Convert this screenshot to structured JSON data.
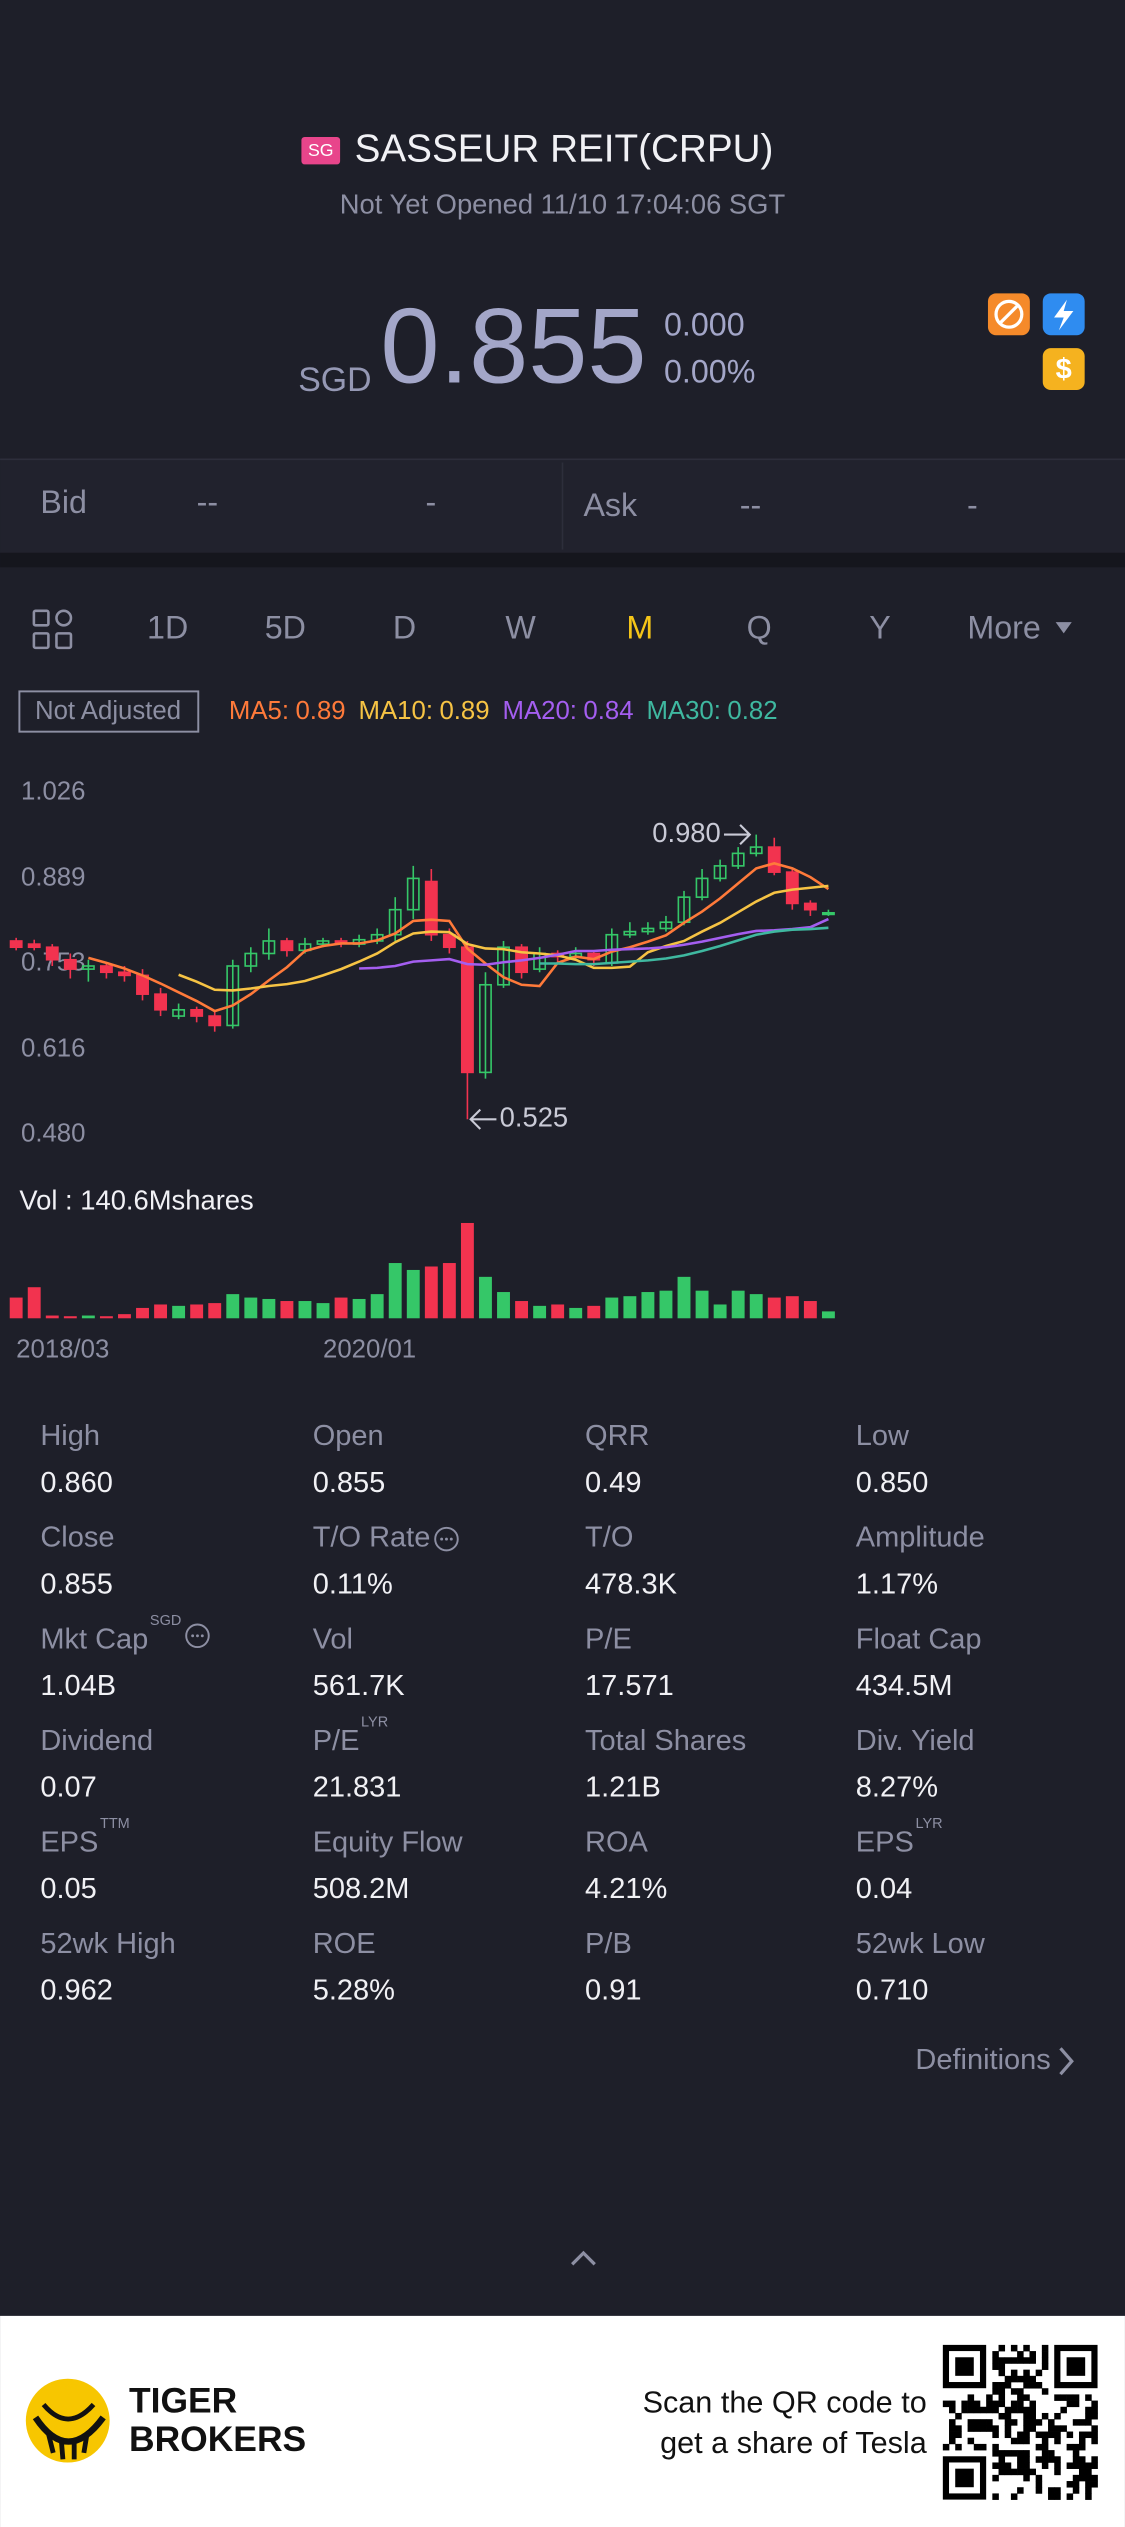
{
  "header": {
    "exchange": "SG",
    "title": "SASSEUR REIT(CRPU)",
    "status": "Not Yet Opened 11/10 17:04:06 SGT",
    "currency": "SGD",
    "price": "0.855",
    "change": "0.000",
    "change_pct": "0.00%"
  },
  "quote": {
    "bid_label": "Bid",
    "bid_price": "--",
    "bid_size": "-",
    "ask_label": "Ask",
    "ask_price": "--",
    "ask_size": "-"
  },
  "tabs": [
    "1D",
    "5D",
    "D",
    "W",
    "M",
    "Q",
    "Y",
    "More"
  ],
  "active_tab": 4,
  "adjust": "Not Adjusted",
  "chart_data": {
    "type": "candlestick",
    "indicators": [
      {
        "name": "MA5:",
        "value": 0.89,
        "color": "#ff7a3a",
        "values": [
          null,
          null,
          null,
          null,
          0.783,
          0.775,
          0.766,
          0.755,
          0.742,
          0.728,
          0.714,
          0.698,
          0.707,
          0.725,
          0.747,
          0.768,
          0.794,
          0.802,
          0.806,
          0.806,
          0.811,
          0.822,
          0.842,
          0.844,
          0.842,
          0.798,
          0.774,
          0.752,
          0.74,
          0.738,
          0.775,
          0.785,
          0.781,
          0.793,
          0.8,
          0.809,
          0.819,
          0.839,
          0.857,
          0.878,
          0.902,
          0.926,
          0.934,
          0.926,
          0.912,
          0.893
        ]
      },
      {
        "name": "MA10:",
        "value": 0.89,
        "color": "#f6c344",
        "values": [
          null,
          null,
          null,
          null,
          null,
          null,
          null,
          null,
          null,
          0.756,
          0.745,
          0.732,
          0.731,
          0.734,
          0.738,
          0.741,
          0.746,
          0.755,
          0.765,
          0.777,
          0.79,
          0.808,
          0.822,
          0.825,
          0.824,
          0.805,
          0.798,
          0.797,
          0.792,
          0.79,
          0.787,
          0.78,
          0.767,
          0.767,
          0.769,
          0.792,
          0.802,
          0.81,
          0.825,
          0.839,
          0.856,
          0.873,
          0.887,
          0.892,
          0.895,
          0.898
        ]
      },
      {
        "name": "MA20:",
        "value": 0.84,
        "color": "#a45ef0",
        "values": [
          null,
          null,
          null,
          null,
          null,
          null,
          null,
          null,
          null,
          null,
          null,
          null,
          null,
          null,
          null,
          null,
          null,
          null,
          null,
          0.766,
          0.767,
          0.77,
          0.777,
          0.779,
          0.781,
          0.773,
          0.772,
          0.776,
          0.779,
          0.783,
          0.788,
          0.794,
          0.794,
          0.796,
          0.797,
          0.798,
          0.8,
          0.804,
          0.809,
          0.815,
          0.821,
          0.826,
          0.827,
          0.829,
          0.832,
          0.845
        ]
      },
      {
        "name": "MA30:",
        "value": 0.82,
        "color": "#3fb8a0",
        "values": [
          null,
          null,
          null,
          null,
          null,
          null,
          null,
          null,
          null,
          null,
          null,
          null,
          null,
          null,
          null,
          null,
          null,
          null,
          null,
          null,
          null,
          null,
          null,
          null,
          null,
          null,
          null,
          null,
          null,
          0.774,
          0.774,
          0.773,
          0.773,
          0.775,
          0.777,
          0.779,
          0.782,
          0.787,
          0.794,
          0.802,
          0.811,
          0.82,
          0.825,
          0.828,
          0.829,
          0.831
        ]
      }
    ],
    "ylim": [
      0.48,
      1.026
    ],
    "yticks": [
      {
        "value": 0.48,
        "label": "0.480"
      },
      0.616,
      0.753,
      0.889,
      1.026
    ],
    "grid": false,
    "up_color": "#35c768",
    "down_color": "#f2334f",
    "open": [
      0.81,
      0.805,
      0.8,
      0.78,
      0.765,
      0.77,
      0.76,
      0.755,
      0.725,
      0.69,
      0.7,
      0.69,
      0.675,
      0.77,
      0.79,
      0.81,
      0.795,
      0.805,
      0.81,
      0.805,
      0.81,
      0.82,
      0.86,
      0.905,
      0.82,
      0.8,
      0.6,
      0.74,
      0.8,
      0.765,
      0.79,
      0.785,
      0.79,
      0.775,
      0.82,
      0.825,
      0.83,
      0.84,
      0.88,
      0.91,
      0.93,
      0.95,
      0.96,
      0.92,
      0.87,
      0.855
    ],
    "high": [
      0.815,
      0.812,
      0.805,
      0.79,
      0.78,
      0.775,
      0.77,
      0.765,
      0.735,
      0.71,
      0.705,
      0.7,
      0.78,
      0.8,
      0.83,
      0.815,
      0.815,
      0.815,
      0.815,
      0.82,
      0.83,
      0.88,
      0.93,
      0.925,
      0.83,
      0.81,
      0.76,
      0.81,
      0.805,
      0.8,
      0.795,
      0.8,
      0.795,
      0.83,
      0.84,
      0.84,
      0.85,
      0.89,
      0.925,
      0.94,
      0.96,
      0.98,
      0.975,
      0.925,
      0.875,
      0.86
    ],
    "low": [
      0.795,
      0.795,
      0.77,
      0.75,
      0.745,
      0.75,
      0.745,
      0.715,
      0.69,
      0.685,
      0.68,
      0.665,
      0.67,
      0.76,
      0.78,
      0.785,
      0.79,
      0.8,
      0.8,
      0.8,
      0.805,
      0.81,
      0.845,
      0.81,
      0.79,
      0.525,
      0.59,
      0.735,
      0.75,
      0.76,
      0.775,
      0.78,
      0.77,
      0.77,
      0.815,
      0.82,
      0.825,
      0.835,
      0.875,
      0.905,
      0.925,
      0.945,
      0.915,
      0.86,
      0.85,
      0.85
    ],
    "close": [
      0.8,
      0.8,
      0.78,
      0.765,
      0.77,
      0.76,
      0.755,
      0.725,
      0.7,
      0.7,
      0.69,
      0.675,
      0.77,
      0.79,
      0.81,
      0.795,
      0.805,
      0.81,
      0.808,
      0.812,
      0.82,
      0.86,
      0.91,
      0.82,
      0.8,
      0.6,
      0.74,
      0.8,
      0.76,
      0.79,
      0.785,
      0.79,
      0.78,
      0.82,
      0.825,
      0.83,
      0.84,
      0.88,
      0.91,
      0.93,
      0.95,
      0.96,
      0.92,
      0.87,
      0.86,
      0.855
    ],
    "annotations": [
      {
        "text": "0.980"
      },
      {
        "text": "0.525"
      }
    ],
    "volume_title": "Vol  : 140.6Mshares",
    "volume": [
      30,
      45,
      4,
      3,
      4,
      3,
      6,
      15,
      20,
      18,
      20,
      22,
      35,
      30,
      28,
      25,
      25,
      22,
      30,
      28,
      35,
      80,
      70,
      75,
      80,
      138,
      60,
      38,
      25,
      18,
      20,
      15,
      18,
      30,
      32,
      38,
      40,
      60,
      40,
      20,
      40,
      35,
      30,
      32,
      25,
      10
    ],
    "vol_ylim": [
      0,
      140
    ],
    "categories": [
      "2018/03",
      null,
      null,
      null,
      null,
      null,
      null,
      null,
      null,
      null,
      null,
      null,
      null,
      null,
      null,
      null,
      null,
      "2020/01",
      null,
      null,
      null,
      null,
      null,
      null,
      null,
      null,
      null,
      null,
      null,
      null,
      null,
      null,
      null,
      null,
      null,
      null,
      null,
      null,
      null,
      null,
      null,
      null,
      null,
      null,
      null,
      null
    ]
  },
  "stats": [
    [
      {
        "label": "High",
        "value": "0.860"
      },
      {
        "label": "Open",
        "value": "0.855"
      },
      {
        "label": "QRR",
        "value": "0.49"
      },
      {
        "label": "Low",
        "value": "0.850"
      }
    ],
    [
      {
        "label": "Close",
        "value": "0.855"
      },
      {
        "label": "T/O Rate",
        "value": "0.11%",
        "info": true
      },
      {
        "label": "T/O",
        "value": "478.3K"
      },
      {
        "label": "Amplitude",
        "value": "1.17%"
      }
    ],
    [
      {
        "label": "Mkt Cap",
        "sup": "SGD",
        "value": "1.04B",
        "info": true
      },
      {
        "label": "Vol",
        "value": "561.7K"
      },
      {
        "label": "P/E",
        "value": "17.571"
      },
      {
        "label": "Float Cap",
        "value": "434.5M"
      }
    ],
    [
      {
        "label": "Dividend",
        "value": "0.07"
      },
      {
        "label": "P/E",
        "sup": "LYR",
        "value": "21.831"
      },
      {
        "label": "Total Shares",
        "value": "1.21B"
      },
      {
        "label": "Div. Yield",
        "value": "8.27%"
      }
    ],
    [
      {
        "label": "EPS",
        "sup": "TTM",
        "value": "0.05"
      },
      {
        "label": "Equity Flow",
        "value": "508.2M"
      },
      {
        "label": "ROA",
        "value": "4.21%"
      },
      {
        "label": "EPS",
        "sup": "LYR",
        "value": "0.04"
      }
    ],
    [
      {
        "label": "52wk High",
        "value": "0.962"
      },
      {
        "label": "ROE",
        "value": "5.28%"
      },
      {
        "label": "P/B",
        "value": "0.91"
      },
      {
        "label": "52wk Low",
        "value": "0.710"
      }
    ]
  ],
  "definitions": "Definitions",
  "footer": {
    "brand": [
      "TIGER",
      "BROKERS"
    ],
    "promo": [
      "Scan the QR code to",
      "get a share of Tesla"
    ]
  }
}
